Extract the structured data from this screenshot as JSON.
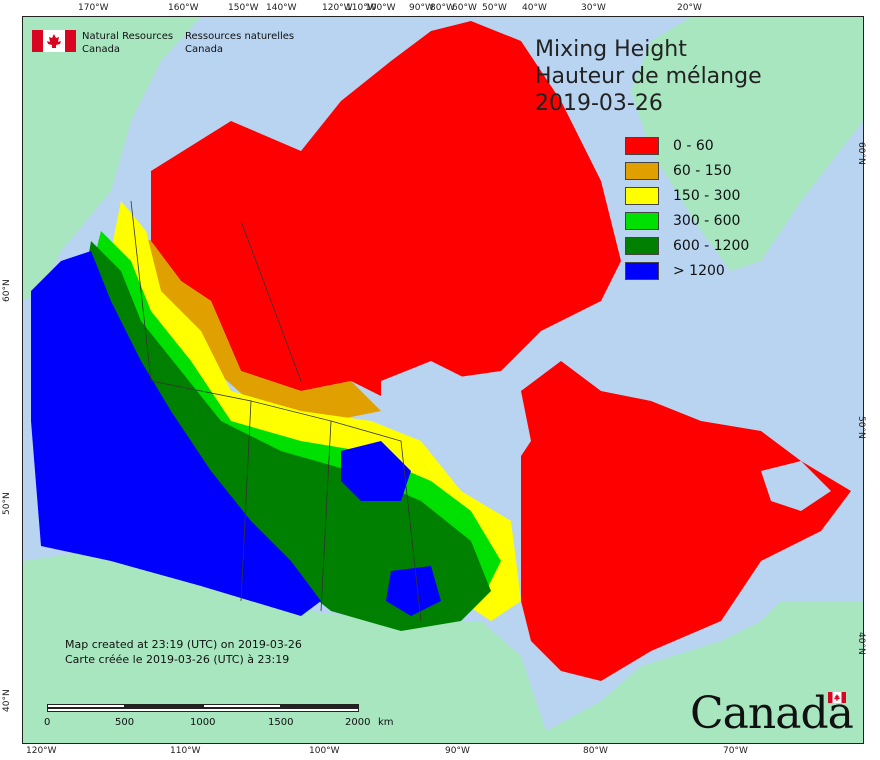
{
  "agency": {
    "en_line1": "Natural Resources",
    "en_line2": "Canada",
    "fr_line1": "Ressources naturelles",
    "fr_line2": "Canada"
  },
  "title": {
    "line1": "Mixing Height",
    "line2": "Hauteur de mélange",
    "date": "2019-03-26"
  },
  "legend": [
    {
      "label": "0 - 60",
      "color": "#ff0000"
    },
    {
      "label": "60 - 150",
      "color": "#e0a000"
    },
    {
      "label": "150 - 300",
      "color": "#ffff00"
    },
    {
      "label": "300 - 600",
      "color": "#00e000"
    },
    {
      "label": "600 - 1200",
      "color": "#008000"
    },
    {
      "label": "> 1200",
      "color": "#0000ff"
    }
  ],
  "created": {
    "en": "Map created at 23:19 (UTC) on 2019-03-26",
    "fr": "Carte créée le 2019-03-26 (UTC) à 23:19"
  },
  "scale": {
    "labels": [
      "0",
      "500",
      "1000",
      "1500",
      "2000"
    ],
    "unit": "km"
  },
  "wordmark": "Canada",
  "graticule": {
    "top": [
      "170°W",
      "160°W",
      "150°W",
      "140°W",
      "120°W",
      "110°W",
      "100°W",
      "90°W",
      "80°W",
      "60°W",
      "50°W",
      "40°W",
      "30°W",
      "20°W"
    ],
    "bottom": [
      "120°W",
      "110°W",
      "100°W",
      "90°W",
      "80°W",
      "70°W"
    ],
    "left": [
      "60°N",
      "50°N",
      "40°N"
    ],
    "right": [
      "60°N",
      "50°N",
      "40°N"
    ]
  },
  "colors": {
    "ocean": "#b8d4f0",
    "land_foreign": "#a8e6c0",
    "red": "#ff0000",
    "orange": "#e0a000",
    "yellow": "#ffff00",
    "light_green": "#00e000",
    "dark_green": "#008000",
    "blue": "#0000ff"
  }
}
